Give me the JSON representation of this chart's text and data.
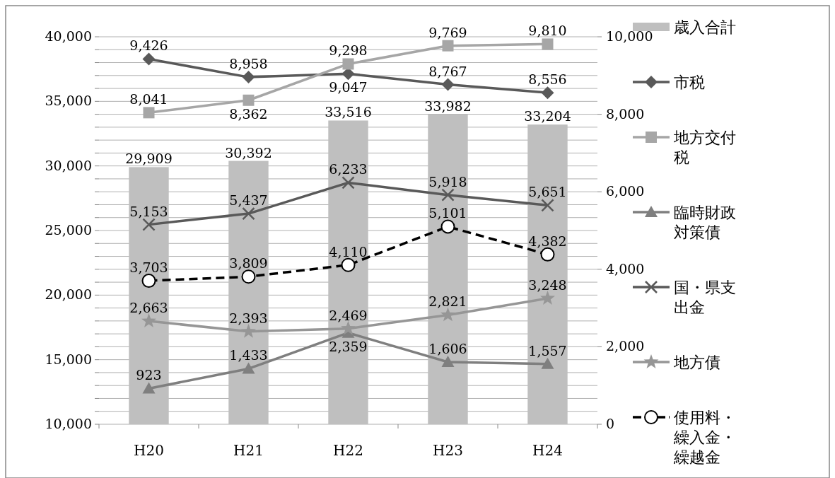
{
  "chart_data": {
    "type": "bar",
    "categories": [
      "H20",
      "H21",
      "H22",
      "H23",
      "H24"
    ],
    "ylim": [
      10000,
      40000
    ],
    "yticks": [
      {
        "value": 10000,
        "label": "10,000"
      },
      {
        "value": 11000,
        "label": null
      },
      {
        "value": 12000,
        "label": null
      },
      {
        "value": 13000,
        "label": null
      },
      {
        "value": 14000,
        "label": null
      },
      {
        "value": 15000,
        "label": "15,000"
      },
      {
        "value": 16000,
        "label": null
      },
      {
        "value": 17000,
        "label": null
      },
      {
        "value": 18000,
        "label": null
      },
      {
        "value": 19000,
        "label": null
      },
      {
        "value": 20000,
        "label": "20,000"
      },
      {
        "value": 21000,
        "label": null
      },
      {
        "value": 22000,
        "label": null
      },
      {
        "value": 23000,
        "label": null
      },
      {
        "value": 24000,
        "label": null
      },
      {
        "value": 25000,
        "label": "25,000"
      },
      {
        "value": 26000,
        "label": null
      },
      {
        "value": 27000,
        "label": null
      },
      {
        "value": 28000,
        "label": null
      },
      {
        "value": 29000,
        "label": null
      },
      {
        "value": 30000,
        "label": "30,000"
      },
      {
        "value": 31000,
        "label": null
      },
      {
        "value": 32000,
        "label": null
      },
      {
        "value": 33000,
        "label": null
      },
      {
        "value": 34000,
        "label": null
      },
      {
        "value": 35000,
        "label": "35,000"
      },
      {
        "value": 36000,
        "label": null
      },
      {
        "value": 37000,
        "label": null
      },
      {
        "value": 38000,
        "label": null
      },
      {
        "value": 39000,
        "label": null
      },
      {
        "value": 40000,
        "label": "40,000"
      }
    ],
    "y2lim": [
      0,
      10000
    ],
    "y2ticks": [
      0,
      {
        "value": 2000,
        "label": "2,000"
      },
      {
        "value": 4000,
        "label": "4,000"
      },
      {
        "value": 6000,
        "label": "6,000"
      },
      {
        "value": 8000,
        "label": "8,000"
      },
      {
        "value": 10000,
        "label": "10,000"
      }
    ],
    "grid": "y",
    "legend": "right",
    "series": [
      {
        "name": "歳入合計",
        "color": "#bfbfbf",
        "values": [
          29909,
          30392,
          33516,
          33982,
          33204
        ],
        "value_labels": [
          "29,909",
          "30,392",
          "33,516",
          "33,982",
          "33,204"
        ]
      },
      {
        "name": "市税",
        "type": "line",
        "axis": "y2",
        "color": "#595959",
        "marker": "diamond",
        "values": [
          9426,
          8958,
          9047,
          8767,
          8556
        ],
        "value_labels": [
          "9,426",
          "8,958",
          "9,047",
          "8,767",
          "8,556"
        ]
      },
      {
        "name": "地方交付税",
        "type": "line",
        "axis": "y2",
        "color": "#a6a6a6",
        "marker": "square",
        "values": [
          8041,
          8362,
          9298,
          9769,
          9810
        ],
        "value_labels": [
          "8,041",
          "8,362",
          "9,298",
          "9,769",
          "9,810"
        ]
      },
      {
        "name": "臨時財政対策債",
        "type": "line",
        "axis": "y2",
        "color": "#7f7f7f",
        "marker": "triangle",
        "values": [
          923,
          1433,
          2359,
          1606,
          1557
        ],
        "value_labels": [
          "923",
          "1,433",
          "2,359",
          "1,606",
          "1,557"
        ]
      },
      {
        "name": "国・県支出金",
        "type": "line",
        "axis": "y2",
        "color": "#595959",
        "marker": "cross",
        "values": [
          5153,
          5437,
          6233,
          5918,
          5651
        ],
        "value_labels": [
          "5,153",
          "5,437",
          "6,233",
          "5,918",
          "5,651"
        ]
      },
      {
        "name": "地方債",
        "type": "line",
        "axis": "y2",
        "color": "#969696",
        "marker": "star",
        "values": [
          2663,
          2393,
          2469,
          2821,
          3248
        ],
        "value_labels": [
          "2,663",
          "2,393",
          "2,469",
          "2,821",
          "3,248"
        ]
      },
      {
        "name": "使用料・繰入金・繰越金",
        "type": "line",
        "axis": "y2",
        "color": "#000000",
        "marker": "circle",
        "line_style": "dashed",
        "values": [
          3703,
          3809,
          4110,
          5101,
          4382
        ],
        "value_labels": [
          "3,703",
          "3,809",
          "4,110",
          "5,101",
          "4,382"
        ]
      }
    ]
  }
}
